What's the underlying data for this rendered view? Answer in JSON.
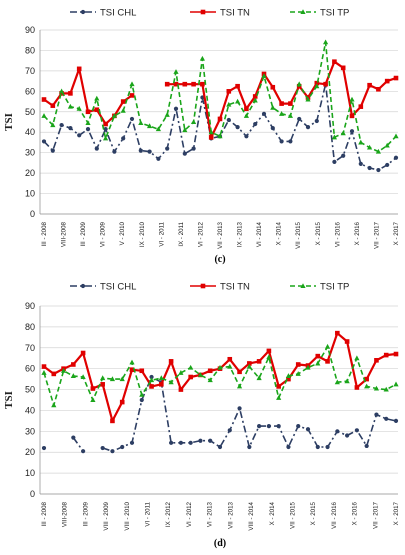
{
  "chart_data": [
    {
      "type": "line",
      "caption": "(c)",
      "ylabel": "TSI",
      "ylim": [
        0,
        90
      ],
      "yticks": [
        0,
        10,
        20,
        30,
        40,
        50,
        60,
        70,
        80,
        90
      ],
      "grid": true,
      "legend_position": "top",
      "tick_labels": [
        "III - 2008",
        "VIII-2008",
        "III - 2009",
        "VI - 2009",
        "V - 2010",
        "IX - 2010",
        "VI - 2011",
        "IX - 2011",
        "VI - 2012",
        "VII - 2013",
        "IX - 2013",
        "VI - 2014",
        "X - 2014",
        "VII - 2015",
        "X - 2015",
        "VI - 2016",
        "X - 2016",
        "VII - 2017",
        "X - 2017"
      ],
      "series": [
        {
          "name": "TSI CHL",
          "color": "#2d3e63",
          "style": "dash-dot",
          "marker": "circle",
          "values": [
            35.5,
            31,
            43.5,
            42,
            38.5,
            41.5,
            32,
            41.5,
            30.5,
            37,
            46.5,
            31,
            30.5,
            27,
            32,
            51.5,
            29.5,
            32,
            57,
            37,
            38,
            46,
            42.5,
            38,
            44,
            49,
            42,
            35.5,
            35.5,
            46.5,
            42.5,
            45.5,
            63.5,
            25.5,
            28.5,
            40.5,
            24.5,
            22.5,
            21.5,
            24,
            27.5
          ]
        },
        {
          "name": "TSI TN",
          "color": "#e00000",
          "style": "solid",
          "marker": "square",
          "values": [
            56,
            53,
            59,
            59,
            71,
            50,
            51,
            44,
            48,
            55,
            58,
            null,
            null,
            null,
            63.5,
            63.5,
            63.5,
            63.5,
            63.5,
            37.5,
            46.5,
            60,
            62.5,
            51.5,
            57.5,
            68.5,
            62,
            54,
            54,
            62.5,
            57,
            64,
            63.5,
            74.5,
            71.5,
            48,
            52.5,
            63,
            61,
            65,
            66.5
          ]
        },
        {
          "name": "TSI TP",
          "color": "#1aa51a",
          "style": "dashed",
          "marker": "triangle",
          "values": [
            48,
            43.5,
            60,
            52.5,
            51.5,
            44.5,
            56.5,
            37,
            48,
            50.5,
            63.5,
            44.5,
            43,
            41.5,
            48.5,
            69.5,
            41,
            45,
            76,
            40,
            38,
            53.5,
            55,
            48,
            55.5,
            67.5,
            52,
            49,
            48,
            63.5,
            56,
            62.5,
            84,
            37.5,
            39.5,
            56,
            35,
            32.5,
            30.5,
            33.5,
            38
          ]
        }
      ]
    },
    {
      "type": "line",
      "caption": "(d)",
      "ylabel": "TSI",
      "ylim": [
        0,
        90
      ],
      "yticks": [
        0,
        10,
        20,
        30,
        40,
        50,
        60,
        70,
        80,
        90
      ],
      "grid": true,
      "legend_position": "top",
      "tick_labels": [
        "III - 2008",
        "VIII-2008",
        "III - 2009",
        "VIII - 2009",
        "VIII - 2010",
        "VI - 2011",
        "IX - 2012",
        "VI - 2012",
        "VI - 2013",
        "VII - 2013",
        "VIII - 2014",
        "X - 2014",
        "VII - 2015",
        "X - 2015",
        "VII - 2016",
        "X - 2016",
        "VII - 2017",
        "X - 2017"
      ],
      "series": [
        {
          "name": "TSI CHL",
          "color": "#2d3e63",
          "style": "dash-dot",
          "marker": "circle",
          "values": [
            22,
            null,
            null,
            27,
            20.5,
            null,
            22,
            20.5,
            22.5,
            24.5,
            45,
            56,
            53.5,
            24.5,
            24.5,
            24.5,
            25.5,
            25.5,
            22.5,
            30.5,
            41,
            22.5,
            32.5,
            32.5,
            32.5,
            22.5,
            32.5,
            31,
            22.5,
            22.5,
            30,
            28,
            30.5,
            23,
            38,
            36,
            35
          ]
        },
        {
          "name": "TSI TN",
          "color": "#e00000",
          "style": "solid",
          "marker": "square",
          "values": [
            61,
            57.5,
            60,
            62,
            67.5,
            50.5,
            52.5,
            35,
            44,
            59.5,
            59,
            51.5,
            52.5,
            63.5,
            50,
            56,
            57,
            59,
            60,
            64.5,
            58.5,
            62.5,
            63.5,
            68.5,
            51.5,
            55,
            62,
            61.5,
            66,
            63.5,
            77,
            73,
            51,
            55,
            64,
            66.5,
            67
          ]
        },
        {
          "name": "TSI TP",
          "color": "#1aa51a",
          "style": "dashed",
          "marker": "triangle",
          "values": [
            58,
            42.5,
            59,
            56.5,
            56,
            45,
            55.5,
            55,
            55,
            63,
            47.5,
            54.5,
            55.5,
            53.5,
            58,
            60.5,
            57,
            54.5,
            60.5,
            61,
            51.5,
            61,
            55.5,
            65.5,
            46,
            56.5,
            57.5,
            60.5,
            62.5,
            70.5,
            53.5,
            54,
            65,
            51.5,
            50.5,
            50,
            52.5
          ]
        }
      ]
    }
  ]
}
